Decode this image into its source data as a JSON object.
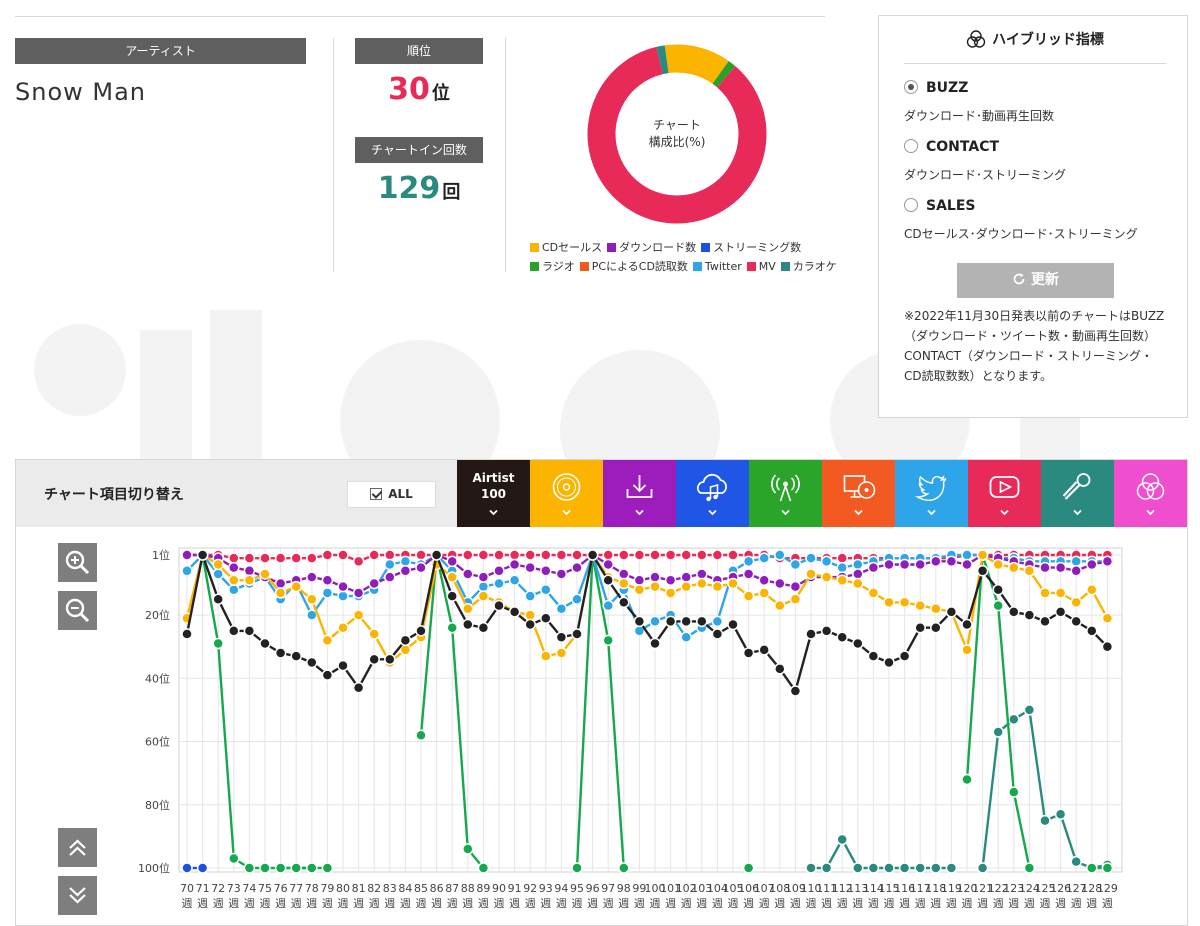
{
  "artist": {
    "label": "アーティスト",
    "name": "Snow Man"
  },
  "rank": {
    "label": "順位",
    "value": "30",
    "unit": "位"
  },
  "chart_in": {
    "label": "チャートイン回数",
    "value": "129",
    "unit": "回"
  },
  "donut": {
    "center_line1": "チャート",
    "center_line2": "構成比(%)",
    "segments": [
      {
        "name": "CDセールス",
        "value": 12,
        "color": "#fbb400"
      },
      {
        "name": "ラジオ",
        "value": 1.5,
        "color": "#2ca02c"
      },
      {
        "name": "MV",
        "value": 85,
        "color": "#e72a57"
      },
      {
        "name": "カラオケ",
        "value": 1.5,
        "color": "#2a8a7f"
      }
    ]
  },
  "legend": {
    "row1": [
      {
        "name": "CDセールス",
        "color": "#fbb400"
      },
      {
        "name": "ダウンロード数",
        "color": "#8e1dbb"
      },
      {
        "name": "ストリーミング数",
        "color": "#1f4fe0"
      }
    ],
    "row2": [
      {
        "name": "ラジオ",
        "color": "#2ca02c"
      },
      {
        "name": "PCによるCD読取数",
        "color": "#ef5a1e"
      },
      {
        "name": "Twitter",
        "color": "#2ea5e8"
      },
      {
        "name": "MV",
        "color": "#e72a57"
      },
      {
        "name": "カラオケ",
        "color": "#2a8a7f"
      }
    ]
  },
  "hybrid": {
    "title": "ハイブリッド指標",
    "options": [
      {
        "label": "BUZZ",
        "desc": "ダウンロード･動画再生回数",
        "selected": true
      },
      {
        "label": "CONTACT",
        "desc": "ダウンロード･ストリーミング",
        "selected": false
      },
      {
        "label": "SALES",
        "desc": "CDセールス･ダウンロード･ストリーミング",
        "selected": false
      }
    ],
    "update_label": "更新",
    "note": "※2022年11月30日発表以前のチャートはBUZZ（ダウンロード・ツイート数・動画再生回数）CONTACT（ダウンロード・ストリーミング・CD読取数数）となります。"
  },
  "switcher": {
    "title": "チャート項目切り替え",
    "all_label": "ALL",
    "airtist_line1": "Airtist",
    "airtist_line2": "100",
    "tabs": [
      {
        "icon": "cd-icon",
        "color": "#fbb400"
      },
      {
        "icon": "download-icon",
        "color": "#9c1dbb"
      },
      {
        "icon": "cloud-music-icon",
        "color": "#1f56e6"
      },
      {
        "icon": "radio-broadcast-icon",
        "color": "#2aa52a"
      },
      {
        "icon": "pc-cd-icon",
        "color": "#f25a22"
      },
      {
        "icon": "twitter-icon",
        "color": "#2ea5e8"
      },
      {
        "icon": "youtube-icon",
        "color": "#e72a57"
      },
      {
        "icon": "microphone-icon",
        "color": "#2a8a7f"
      },
      {
        "icon": "hybrid-icon",
        "color": "#ef4fcf"
      }
    ]
  },
  "chart_data": {
    "type": "line",
    "x_unit": "週",
    "x": [
      70,
      71,
      72,
      73,
      74,
      75,
      76,
      77,
      78,
      79,
      80,
      81,
      82,
      83,
      84,
      85,
      86,
      87,
      88,
      89,
      90,
      91,
      92,
      93,
      94,
      95,
      96,
      97,
      98,
      99,
      100,
      101,
      102,
      103,
      104,
      105,
      106,
      107,
      108,
      109,
      110,
      111,
      112,
      113,
      114,
      115,
      116,
      117,
      118,
      119,
      120,
      121,
      122,
      123,
      124,
      125,
      126,
      127,
      128,
      129
    ],
    "y_ticks": [
      "1位",
      "20位",
      "40位",
      "60位",
      "80位",
      "100位"
    ],
    "y_tick_values": [
      1,
      20,
      40,
      60,
      80,
      100
    ],
    "y_range": [
      1,
      100
    ],
    "y_inverted": true,
    "series": [
      {
        "name": "Airtist 100",
        "color": "#222222",
        "values": [
          26,
          1,
          15,
          25,
          25,
          29,
          32,
          33,
          35,
          39,
          36,
          43,
          34,
          34,
          28,
          25,
          1,
          14,
          23,
          24,
          17,
          19,
          23,
          21,
          27,
          26,
          1,
          9,
          16,
          22,
          29,
          22,
          22,
          22,
          26,
          23,
          32,
          31,
          37,
          44,
          26,
          25,
          27,
          29,
          33,
          35,
          33,
          24,
          24,
          19,
          23,
          6,
          12,
          19,
          20,
          22,
          19,
          22,
          25,
          30
        ]
      },
      {
        "name": "CDセールス",
        "color": "#fbb400",
        "values": [
          21,
          1,
          4,
          9,
          9,
          7,
          13,
          11,
          15,
          28,
          24,
          20,
          26,
          35,
          31,
          27,
          4,
          8,
          18,
          14,
          16,
          19,
          20,
          33,
          32,
          26,
          1,
          8,
          10,
          12,
          11,
          13,
          11,
          10,
          11,
          10,
          14,
          13,
          17,
          15,
          7,
          8,
          9,
          10,
          13,
          16,
          16,
          17,
          18,
          19,
          31,
          1,
          4,
          5,
          6,
          13,
          13,
          16,
          12,
          21
        ]
      },
      {
        "name": "ダウンロード数",
        "color": "#8e1dbb",
        "values": [
          1,
          1,
          2,
          5,
          6,
          8,
          10,
          9,
          8,
          9,
          11,
          13,
          10,
          8,
          6,
          5,
          1,
          3,
          7,
          8,
          6,
          4,
          5,
          6,
          7,
          5,
          1,
          4,
          7,
          9,
          8,
          9,
          8,
          7,
          9,
          8,
          7,
          9,
          10,
          11,
          8,
          8,
          8,
          7,
          5,
          4,
          4,
          4,
          3,
          3,
          4,
          1,
          2,
          3,
          4,
          5,
          5,
          6,
          4,
          3
        ]
      },
      {
        "name": "Twitter",
        "color": "#2ea5e8",
        "values": [
          6,
          1,
          7,
          12,
          10,
          8,
          15,
          10,
          20,
          13,
          14,
          14,
          12,
          4,
          3,
          4,
          1,
          6,
          16,
          11,
          10,
          9,
          14,
          12,
          18,
          15,
          1,
          17,
          12,
          25,
          22,
          20,
          27,
          24,
          22,
          6,
          3,
          2,
          1,
          4,
          2,
          3,
          5,
          4,
          3,
          2,
          2,
          2,
          2,
          1,
          1,
          1,
          2,
          2,
          3,
          3,
          3,
          3,
          3,
          3
        ]
      },
      {
        "name": "MV",
        "color": "#e72a57",
        "values": [
          1,
          1,
          1,
          2,
          2,
          2,
          2,
          2,
          2,
          1,
          1,
          3,
          1,
          1,
          1,
          1,
          1,
          1,
          1,
          1,
          1,
          1,
          1,
          1,
          1,
          1,
          1,
          1,
          1,
          1,
          1,
          1,
          1,
          1,
          1,
          1,
          1,
          1,
          2,
          2,
          2,
          2,
          2,
          2,
          2,
          2,
          2,
          2,
          2,
          2,
          1,
          1,
          1,
          1,
          1,
          1,
          1,
          1,
          1,
          1
        ]
      },
      {
        "name": "ラジオ",
        "color": "#15a84c",
        "values": [
          null,
          1,
          29,
          97,
          100,
          100,
          100,
          100,
          100,
          100,
          null,
          null,
          null,
          null,
          null,
          58,
          1,
          24,
          94,
          100,
          null,
          null,
          null,
          null,
          null,
          100,
          1,
          28,
          100,
          null,
          null,
          null,
          null,
          null,
          null,
          null,
          100,
          null,
          null,
          null,
          null,
          null,
          null,
          null,
          null,
          null,
          null,
          null,
          null,
          null,
          72,
          1,
          17,
          76,
          100,
          null,
          null,
          null,
          100,
          100
        ]
      },
      {
        "name": "カラオケ",
        "color": "#2a8a7f",
        "values": [
          null,
          null,
          null,
          null,
          null,
          null,
          100,
          100,
          100,
          null,
          null,
          null,
          null,
          null,
          null,
          null,
          null,
          null,
          null,
          null,
          null,
          null,
          null,
          null,
          null,
          null,
          null,
          null,
          null,
          null,
          null,
          null,
          null,
          null,
          null,
          null,
          null,
          null,
          null,
          null,
          100,
          100,
          91,
          100,
          100,
          100,
          100,
          100,
          100,
          100,
          null,
          100,
          57,
          53,
          50,
          85,
          83,
          98,
          100,
          99
        ]
      },
      {
        "name": "ストリーミング数",
        "color": "#1f4fe0",
        "values": [
          100,
          100,
          null,
          null,
          null,
          null,
          null,
          null,
          null,
          null,
          null,
          null,
          null,
          null,
          null,
          null,
          null,
          null,
          null,
          null,
          null,
          null,
          null,
          null,
          null,
          null,
          null,
          null,
          null,
          null,
          null,
          null,
          null,
          null,
          null,
          null,
          null,
          null,
          null,
          null,
          null,
          null,
          null,
          null,
          null,
          null,
          null,
          null,
          null,
          null,
          null,
          null,
          null,
          null,
          null,
          null,
          null,
          null,
          null,
          null
        ]
      }
    ]
  }
}
